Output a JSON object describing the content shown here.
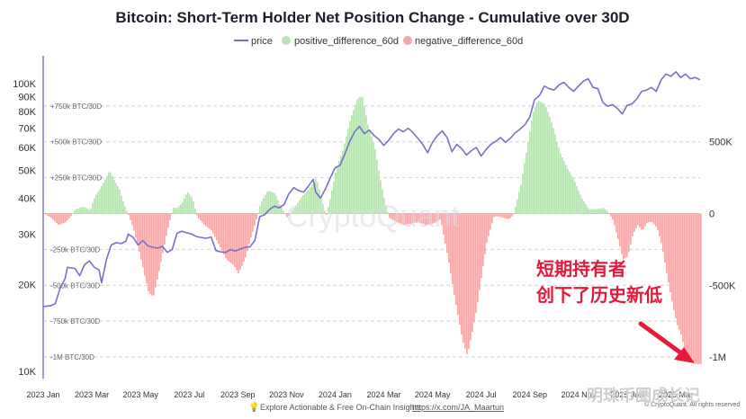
{
  "chart_data": {
    "type": "area",
    "title": "Bitcoin: Short-Term Holder Net Position Change - Cumulative over 30D",
    "legend": [
      {
        "name": "price",
        "color": "#7b6fc6",
        "kind": "line"
      },
      {
        "name": "positive_difference_60d",
        "color": "#b6e3b1",
        "kind": "dot"
      },
      {
        "name": "negative_difference_60d",
        "color": "#f3a7a7",
        "kind": "dot"
      }
    ],
    "legend_position": "top-center",
    "grid": true,
    "x_ticks": [
      "2023 Jan",
      "2023 Mar",
      "2023 May",
      "2023 Jul",
      "2023 Sep",
      "2023 Nov",
      "2024 Jan",
      "2024 Mar",
      "2024 May",
      "2024 Jul",
      "2024 Sep",
      "2024 Nov",
      "2025 Jan",
      "2025 Mar"
    ],
    "left_axis": {
      "scale": "log",
      "ticks": [
        "100K",
        "90K",
        "80K",
        "70K",
        "60K",
        "50K",
        "40K",
        "30K",
        "20K",
        "10K"
      ],
      "tick_values": [
        100000,
        90000,
        80000,
        70000,
        60000,
        50000,
        40000,
        30000,
        20000,
        10000
      ],
      "range": [
        10000,
        125000
      ]
    },
    "right_axis": {
      "ticks": [
        "500K",
        "0",
        "-500K",
        "-1M"
      ],
      "tick_values": [
        500000,
        0,
        -500000,
        -1000000
      ],
      "range": [
        -1100000,
        1100000
      ]
    },
    "inner_labels": [
      "+750k BTC/30D",
      "+500k BTC/30D",
      "+250k BTC/30D",
      "-250k BTC/30D",
      "-500k BTC/30D",
      "-750k BTC/30D",
      "-1M BTC/30D"
    ],
    "inner_label_values": [
      750000,
      500000,
      250000,
      -250000,
      -500000,
      -750000,
      -1000000
    ],
    "x_start_month": 0,
    "x_end_month": 27,
    "price_series": [
      [
        0.0,
        16800
      ],
      [
        0.3,
        16900
      ],
      [
        0.5,
        17200
      ],
      [
        0.7,
        19500
      ],
      [
        0.9,
        21000
      ],
      [
        1.0,
        23000
      ],
      [
        1.3,
        22800
      ],
      [
        1.5,
        21500
      ],
      [
        1.7,
        23500
      ],
      [
        1.9,
        24200
      ],
      [
        2.1,
        23000
      ],
      [
        2.3,
        22500
      ],
      [
        2.4,
        20300
      ],
      [
        2.5,
        22300
      ],
      [
        2.6,
        24500
      ],
      [
        2.8,
        27500
      ],
      [
        3.0,
        28000
      ],
      [
        3.2,
        27800
      ],
      [
        3.4,
        28300
      ],
      [
        3.5,
        30000
      ],
      [
        3.7,
        29200
      ],
      [
        3.9,
        27500
      ],
      [
        4.1,
        28500
      ],
      [
        4.3,
        27300
      ],
      [
        4.5,
        27000
      ],
      [
        4.7,
        26800
      ],
      [
        4.9,
        27200
      ],
      [
        5.1,
        25900
      ],
      [
        5.3,
        26500
      ],
      [
        5.5,
        30200
      ],
      [
        5.7,
        30700
      ],
      [
        5.9,
        30300
      ],
      [
        6.1,
        30000
      ],
      [
        6.3,
        29400
      ],
      [
        6.5,
        29200
      ],
      [
        6.7,
        29000
      ],
      [
        6.9,
        29300
      ],
      [
        7.1,
        26300
      ],
      [
        7.3,
        26000
      ],
      [
        7.5,
        25900
      ],
      [
        7.7,
        26500
      ],
      [
        7.9,
        26200
      ],
      [
        8.1,
        26600
      ],
      [
        8.3,
        27000
      ],
      [
        8.5,
        27100
      ],
      [
        8.7,
        28500
      ],
      [
        8.9,
        34500
      ],
      [
        9.1,
        35000
      ],
      [
        9.3,
        36500
      ],
      [
        9.5,
        37500
      ],
      [
        9.7,
        37000
      ],
      [
        9.9,
        38000
      ],
      [
        10.1,
        41500
      ],
      [
        10.3,
        43500
      ],
      [
        10.5,
        42500
      ],
      [
        10.7,
        42000
      ],
      [
        10.9,
        44000
      ],
      [
        11.1,
        46500
      ],
      [
        11.2,
        42000
      ],
      [
        11.4,
        40000
      ],
      [
        11.6,
        43000
      ],
      [
        11.8,
        47000
      ],
      [
        12.0,
        51000
      ],
      [
        12.2,
        52000
      ],
      [
        12.4,
        57000
      ],
      [
        12.6,
        63000
      ],
      [
        12.8,
        68000
      ],
      [
        13.0,
        71000
      ],
      [
        13.2,
        67000
      ],
      [
        13.4,
        69000
      ],
      [
        13.6,
        66000
      ],
      [
        13.8,
        64000
      ],
      [
        14.0,
        61000
      ],
      [
        14.2,
        63500
      ],
      [
        14.4,
        67000
      ],
      [
        14.6,
        69500
      ],
      [
        14.8,
        68000
      ],
      [
        15.0,
        70000
      ],
      [
        15.2,
        67500
      ],
      [
        15.4,
        64500
      ],
      [
        15.6,
        61500
      ],
      [
        15.8,
        57500
      ],
      [
        16.0,
        62500
      ],
      [
        16.2,
        66000
      ],
      [
        16.4,
        68500
      ],
      [
        16.6,
        65000
      ],
      [
        16.8,
        58000
      ],
      [
        17.0,
        61500
      ],
      [
        17.2,
        59500
      ],
      [
        17.4,
        56500
      ],
      [
        17.6,
        58500
      ],
      [
        17.8,
        60000
      ],
      [
        18.0,
        56000
      ],
      [
        18.2,
        59000
      ],
      [
        18.4,
        61500
      ],
      [
        18.6,
        63000
      ],
      [
        18.8,
        65000
      ],
      [
        19.0,
        62500
      ],
      [
        19.2,
        64500
      ],
      [
        19.4,
        67500
      ],
      [
        19.6,
        69500
      ],
      [
        19.8,
        72000
      ],
      [
        20.0,
        76500
      ],
      [
        20.2,
        88000
      ],
      [
        20.4,
        91000
      ],
      [
        20.6,
        98000
      ],
      [
        20.8,
        96000
      ],
      [
        21.0,
        95000
      ],
      [
        21.2,
        99000
      ],
      [
        21.4,
        101000
      ],
      [
        21.6,
        97000
      ],
      [
        21.8,
        94000
      ],
      [
        22.0,
        98000
      ],
      [
        22.2,
        102000
      ],
      [
        22.4,
        104000
      ],
      [
        22.6,
        97000
      ],
      [
        22.8,
        96000
      ],
      [
        23.0,
        86000
      ],
      [
        23.2,
        83500
      ],
      [
        23.4,
        84500
      ],
      [
        23.6,
        82000
      ],
      [
        23.8,
        78500
      ],
      [
        24.0,
        84000
      ],
      [
        24.2,
        85000
      ],
      [
        24.4,
        88500
      ],
      [
        24.6,
        94000
      ],
      [
        24.8,
        95000
      ],
      [
        25.0,
        97000
      ],
      [
        25.2,
        94000
      ],
      [
        25.4,
        103000
      ],
      [
        25.6,
        108000
      ],
      [
        25.8,
        106000
      ],
      [
        26.0,
        110000
      ],
      [
        26.2,
        105000
      ],
      [
        26.4,
        108000
      ],
      [
        26.6,
        104000
      ],
      [
        26.8,
        105000
      ],
      [
        27.0,
        103000
      ]
    ],
    "position_change_series": [
      [
        0.0,
        0
      ],
      [
        0.3,
        -30000
      ],
      [
        0.6,
        -80000
      ],
      [
        0.9,
        -60000
      ],
      [
        1.1,
        -20000
      ],
      [
        1.3,
        30000
      ],
      [
        1.6,
        50000
      ],
      [
        1.9,
        25000
      ],
      [
        2.1,
        120000
      ],
      [
        2.4,
        200000
      ],
      [
        2.7,
        300000
      ],
      [
        2.9,
        230000
      ],
      [
        3.1,
        170000
      ],
      [
        3.3,
        60000
      ],
      [
        3.5,
        -20000
      ],
      [
        3.7,
        -120000
      ],
      [
        3.9,
        -250000
      ],
      [
        4.1,
        -400000
      ],
      [
        4.3,
        -550000
      ],
      [
        4.5,
        -580000
      ],
      [
        4.7,
        -430000
      ],
      [
        4.9,
        -260000
      ],
      [
        5.1,
        -100000
      ],
      [
        5.3,
        40000
      ],
      [
        5.5,
        40000
      ],
      [
        5.7,
        80000
      ],
      [
        5.9,
        150000
      ],
      [
        6.1,
        110000
      ],
      [
        6.3,
        -20000
      ],
      [
        6.6,
        -80000
      ],
      [
        6.9,
        -120000
      ],
      [
        7.2,
        -220000
      ],
      [
        7.5,
        -320000
      ],
      [
        7.8,
        -360000
      ],
      [
        8.0,
        -420000
      ],
      [
        8.3,
        -300000
      ],
      [
        8.5,
        -170000
      ],
      [
        8.7,
        -60000
      ],
      [
        8.9,
        70000
      ],
      [
        9.2,
        160000
      ],
      [
        9.5,
        140000
      ],
      [
        9.7,
        60000
      ],
      [
        10.0,
        -30000
      ],
      [
        10.3,
        40000
      ],
      [
        10.6,
        120000
      ],
      [
        10.9,
        170000
      ],
      [
        11.2,
        250000
      ],
      [
        11.4,
        110000
      ],
      [
        11.6,
        -20000
      ],
      [
        11.8,
        130000
      ],
      [
        12.0,
        300000
      ],
      [
        12.3,
        450000
      ],
      [
        12.6,
        660000
      ],
      [
        12.9,
        810000
      ],
      [
        13.1,
        810000
      ],
      [
        13.3,
        630000
      ],
      [
        13.6,
        460000
      ],
      [
        13.8,
        260000
      ],
      [
        14.0,
        90000
      ],
      [
        14.2,
        -30000
      ],
      [
        14.5,
        -60000
      ],
      [
        14.8,
        -80000
      ],
      [
        15.1,
        -70000
      ],
      [
        15.4,
        -60000
      ],
      [
        15.7,
        -80000
      ],
      [
        16.0,
        -70000
      ],
      [
        16.3,
        -40000
      ],
      [
        16.6,
        -300000
      ],
      [
        16.9,
        -600000
      ],
      [
        17.2,
        -880000
      ],
      [
        17.4,
        -990000
      ],
      [
        17.6,
        -830000
      ],
      [
        17.8,
        -650000
      ],
      [
        18.0,
        -420000
      ],
      [
        18.2,
        -200000
      ],
      [
        18.5,
        -20000
      ],
      [
        18.7,
        -20000
      ],
      [
        18.9,
        -30000
      ],
      [
        19.1,
        -40000
      ],
      [
        19.3,
        -10000
      ],
      [
        19.6,
        200000
      ],
      [
        19.9,
        500000
      ],
      [
        20.1,
        700000
      ],
      [
        20.3,
        790000
      ],
      [
        20.6,
        760000
      ],
      [
        20.9,
        620000
      ],
      [
        21.2,
        430000
      ],
      [
        21.5,
        320000
      ],
      [
        21.8,
        230000
      ],
      [
        22.1,
        110000
      ],
      [
        22.4,
        30000
      ],
      [
        22.7,
        30000
      ],
      [
        23.0,
        40000
      ],
      [
        23.2,
        10000
      ],
      [
        23.4,
        -50000
      ],
      [
        23.6,
        -180000
      ],
      [
        23.8,
        -320000
      ],
      [
        24.0,
        -300000
      ],
      [
        24.2,
        -150000
      ],
      [
        24.4,
        -80000
      ],
      [
        24.6,
        -120000
      ],
      [
        24.8,
        -60000
      ],
      [
        25.0,
        -60000
      ],
      [
        25.2,
        -100000
      ],
      [
        25.4,
        -220000
      ],
      [
        25.6,
        -420000
      ],
      [
        25.8,
        -600000
      ],
      [
        26.0,
        -760000
      ],
      [
        26.2,
        -850000
      ],
      [
        26.4,
        -1000000
      ],
      [
        26.6,
        -1030000
      ],
      [
        26.8,
        -1050000
      ],
      [
        27.0,
        -1050000
      ]
    ],
    "annotations": [
      "短期持有者",
      "创下了历史新低"
    ],
    "watermark": "CryptoQuant"
  },
  "footer": {
    "text": "Explore Actionable & Free On-Chain Insights:",
    "link": "https://x.com/JA_Maartun",
    "icon": "bulb-icon"
  },
  "copyright": "© CryptoQuant. All rights reserved",
  "wechat_watermark": "明珠币圈成长记"
}
